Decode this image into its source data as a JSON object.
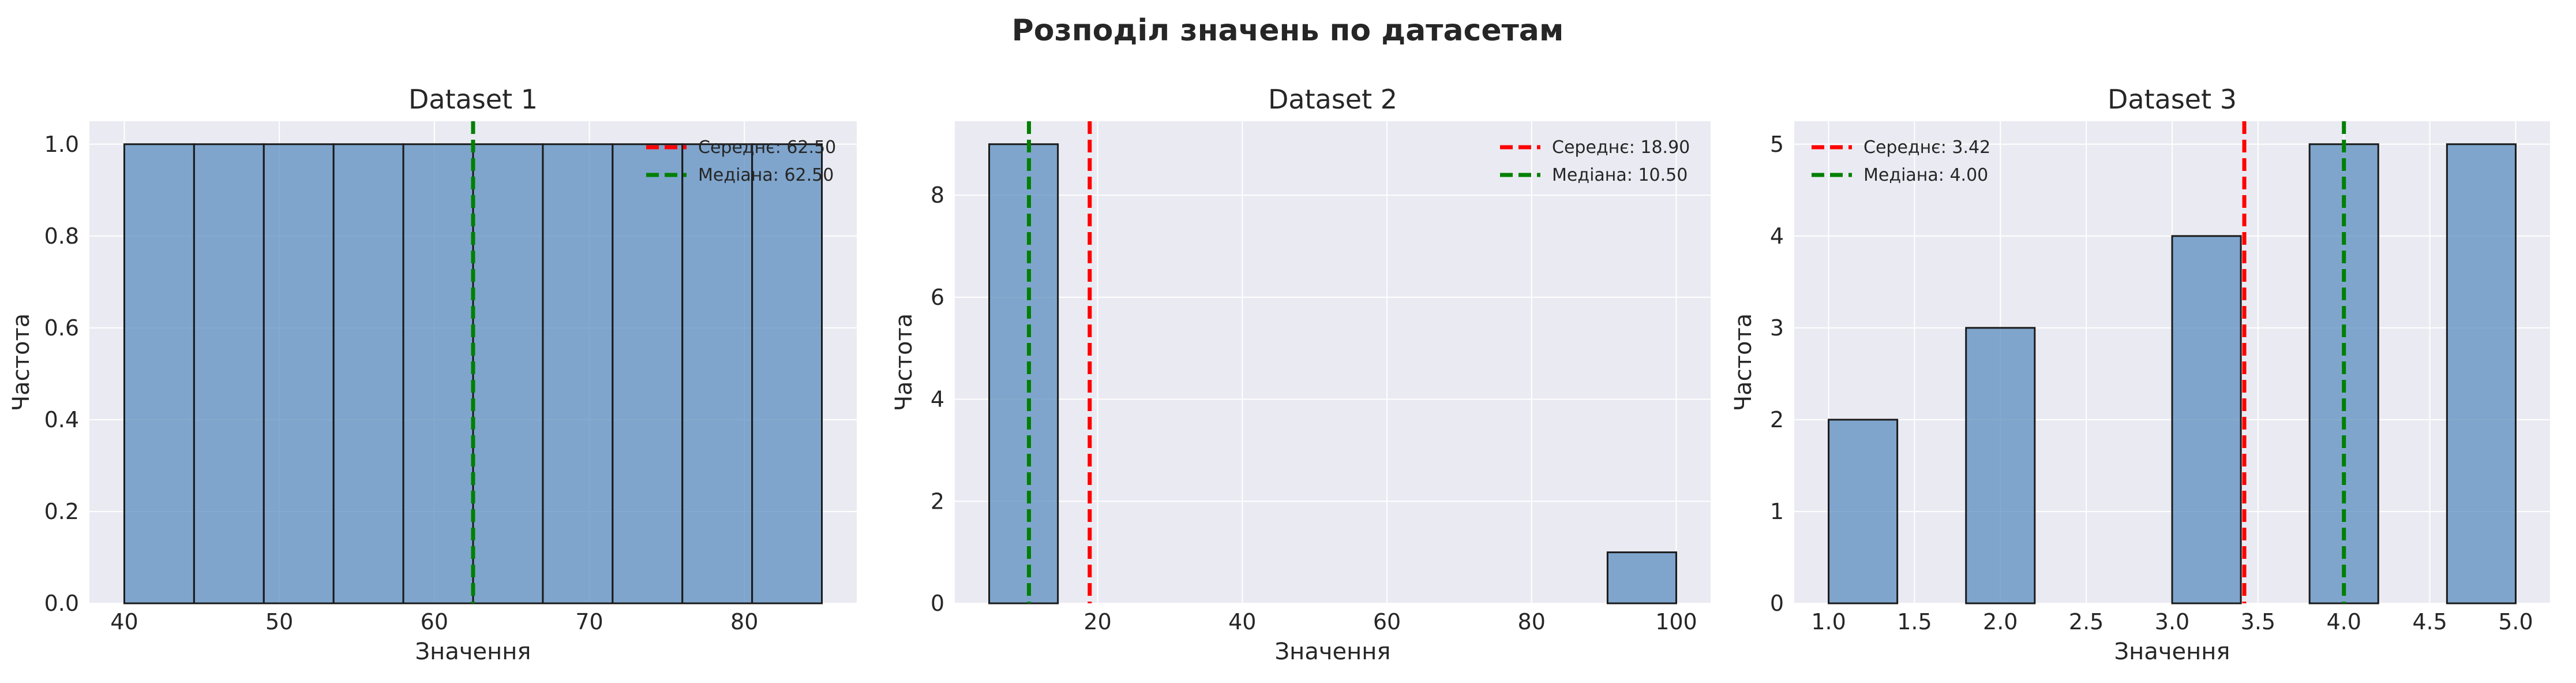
{
  "figure": {
    "title": "Розподіл значень по датасетам"
  },
  "colors": {
    "bar": "#5b8dbf",
    "edge": "#1a1a1a",
    "mean": "#ff0000",
    "median": "#008000",
    "panel_bg": "#eaeaf2",
    "grid": "#ffffff"
  },
  "chart_data": [
    {
      "type": "bar",
      "title": "Dataset 1",
      "xlabel": "Значення",
      "ylabel": "Частота",
      "xlim": [
        37.75,
        87.25
      ],
      "ylim": [
        0,
        1.05
      ],
      "xticks": [
        40,
        50,
        60,
        70,
        80
      ],
      "xtick_labels": [
        "40",
        "50",
        "60",
        "70",
        "80"
      ],
      "yticks": [
        0,
        0.2,
        0.4,
        0.6,
        0.8,
        1.0
      ],
      "ytick_labels": [
        "0.0",
        "0.2",
        "0.4",
        "0.6",
        "0.8",
        "1.0"
      ],
      "bins": [
        {
          "x0": 40.0,
          "x1": 44.5,
          "count": 1
        },
        {
          "x0": 44.5,
          "x1": 49.0,
          "count": 1
        },
        {
          "x0": 49.0,
          "x1": 53.5,
          "count": 1
        },
        {
          "x0": 53.5,
          "x1": 58.0,
          "count": 1
        },
        {
          "x0": 58.0,
          "x1": 62.5,
          "count": 1
        },
        {
          "x0": 62.5,
          "x1": 67.0,
          "count": 1
        },
        {
          "x0": 67.0,
          "x1": 71.5,
          "count": 1
        },
        {
          "x0": 71.5,
          "x1": 76.0,
          "count": 1
        },
        {
          "x0": 76.0,
          "x1": 80.5,
          "count": 1
        },
        {
          "x0": 80.5,
          "x1": 85.0,
          "count": 1
        }
      ],
      "mean": 62.5,
      "median": 62.5,
      "legend": [
        "Середнє: 62.50",
        "Медіана: 62.50"
      ],
      "legend_position": "upper right",
      "grid": true
    },
    {
      "type": "bar",
      "title": "Dataset 2",
      "xlabel": "Значення",
      "ylabel": "Частота",
      "xlim": [
        0.25,
        104.75
      ],
      "ylim": [
        0,
        9.45
      ],
      "xticks": [
        20,
        40,
        60,
        80,
        100
      ],
      "xtick_labels": [
        "20",
        "40",
        "60",
        "80",
        "100"
      ],
      "yticks": [
        0,
        2,
        4,
        6,
        8
      ],
      "ytick_labels": [
        "0",
        "2",
        "4",
        "6",
        "8"
      ],
      "bins": [
        {
          "x0": 5.0,
          "x1": 14.5,
          "count": 9
        },
        {
          "x0": 14.5,
          "x1": 24.0,
          "count": 0
        },
        {
          "x0": 24.0,
          "x1": 33.5,
          "count": 0
        },
        {
          "x0": 33.5,
          "x1": 43.0,
          "count": 0
        },
        {
          "x0": 43.0,
          "x1": 52.5,
          "count": 0
        },
        {
          "x0": 52.5,
          "x1": 62.0,
          "count": 0
        },
        {
          "x0": 62.0,
          "x1": 71.5,
          "count": 0
        },
        {
          "x0": 71.5,
          "x1": 81.0,
          "count": 0
        },
        {
          "x0": 81.0,
          "x1": 90.5,
          "count": 0
        },
        {
          "x0": 90.5,
          "x1": 100.0,
          "count": 1
        }
      ],
      "mean": 18.9,
      "median": 10.5,
      "legend": [
        "Середнє: 18.90",
        "Медіана: 10.50"
      ],
      "legend_position": "upper right",
      "grid": true
    },
    {
      "type": "bar",
      "title": "Dataset 3",
      "xlabel": "Значення",
      "ylabel": "Частота",
      "xlim": [
        0.8,
        5.2
      ],
      "ylim": [
        0,
        5.25
      ],
      "xticks": [
        1.0,
        1.5,
        2.0,
        2.5,
        3.0,
        3.5,
        4.0,
        4.5,
        5.0
      ],
      "xtick_labels": [
        "1.0",
        "1.5",
        "2.0",
        "2.5",
        "3.0",
        "3.5",
        "4.0",
        "4.5",
        "5.0"
      ],
      "yticks": [
        0,
        1,
        2,
        3,
        4,
        5
      ],
      "ytick_labels": [
        "0",
        "1",
        "2",
        "3",
        "4",
        "5"
      ],
      "bins": [
        {
          "x0": 1.0,
          "x1": 1.4,
          "count": 2
        },
        {
          "x0": 1.4,
          "x1": 1.8,
          "count": 0
        },
        {
          "x0": 1.8,
          "x1": 2.2,
          "count": 3
        },
        {
          "x0": 2.2,
          "x1": 2.6,
          "count": 0
        },
        {
          "x0": 2.6,
          "x1": 3.0,
          "count": 0
        },
        {
          "x0": 3.0,
          "x1": 3.4,
          "count": 4
        },
        {
          "x0": 3.4,
          "x1": 3.8,
          "count": 0
        },
        {
          "x0": 3.8,
          "x1": 4.2,
          "count": 5
        },
        {
          "x0": 4.2,
          "x1": 4.6,
          "count": 0
        },
        {
          "x0": 4.6,
          "x1": 5.0,
          "count": 5
        }
      ],
      "mean": 3.42,
      "median": 4.0,
      "legend": [
        "Середнє: 3.42",
        "Медіана: 4.00"
      ],
      "legend_position": "upper left",
      "grid": true
    }
  ]
}
